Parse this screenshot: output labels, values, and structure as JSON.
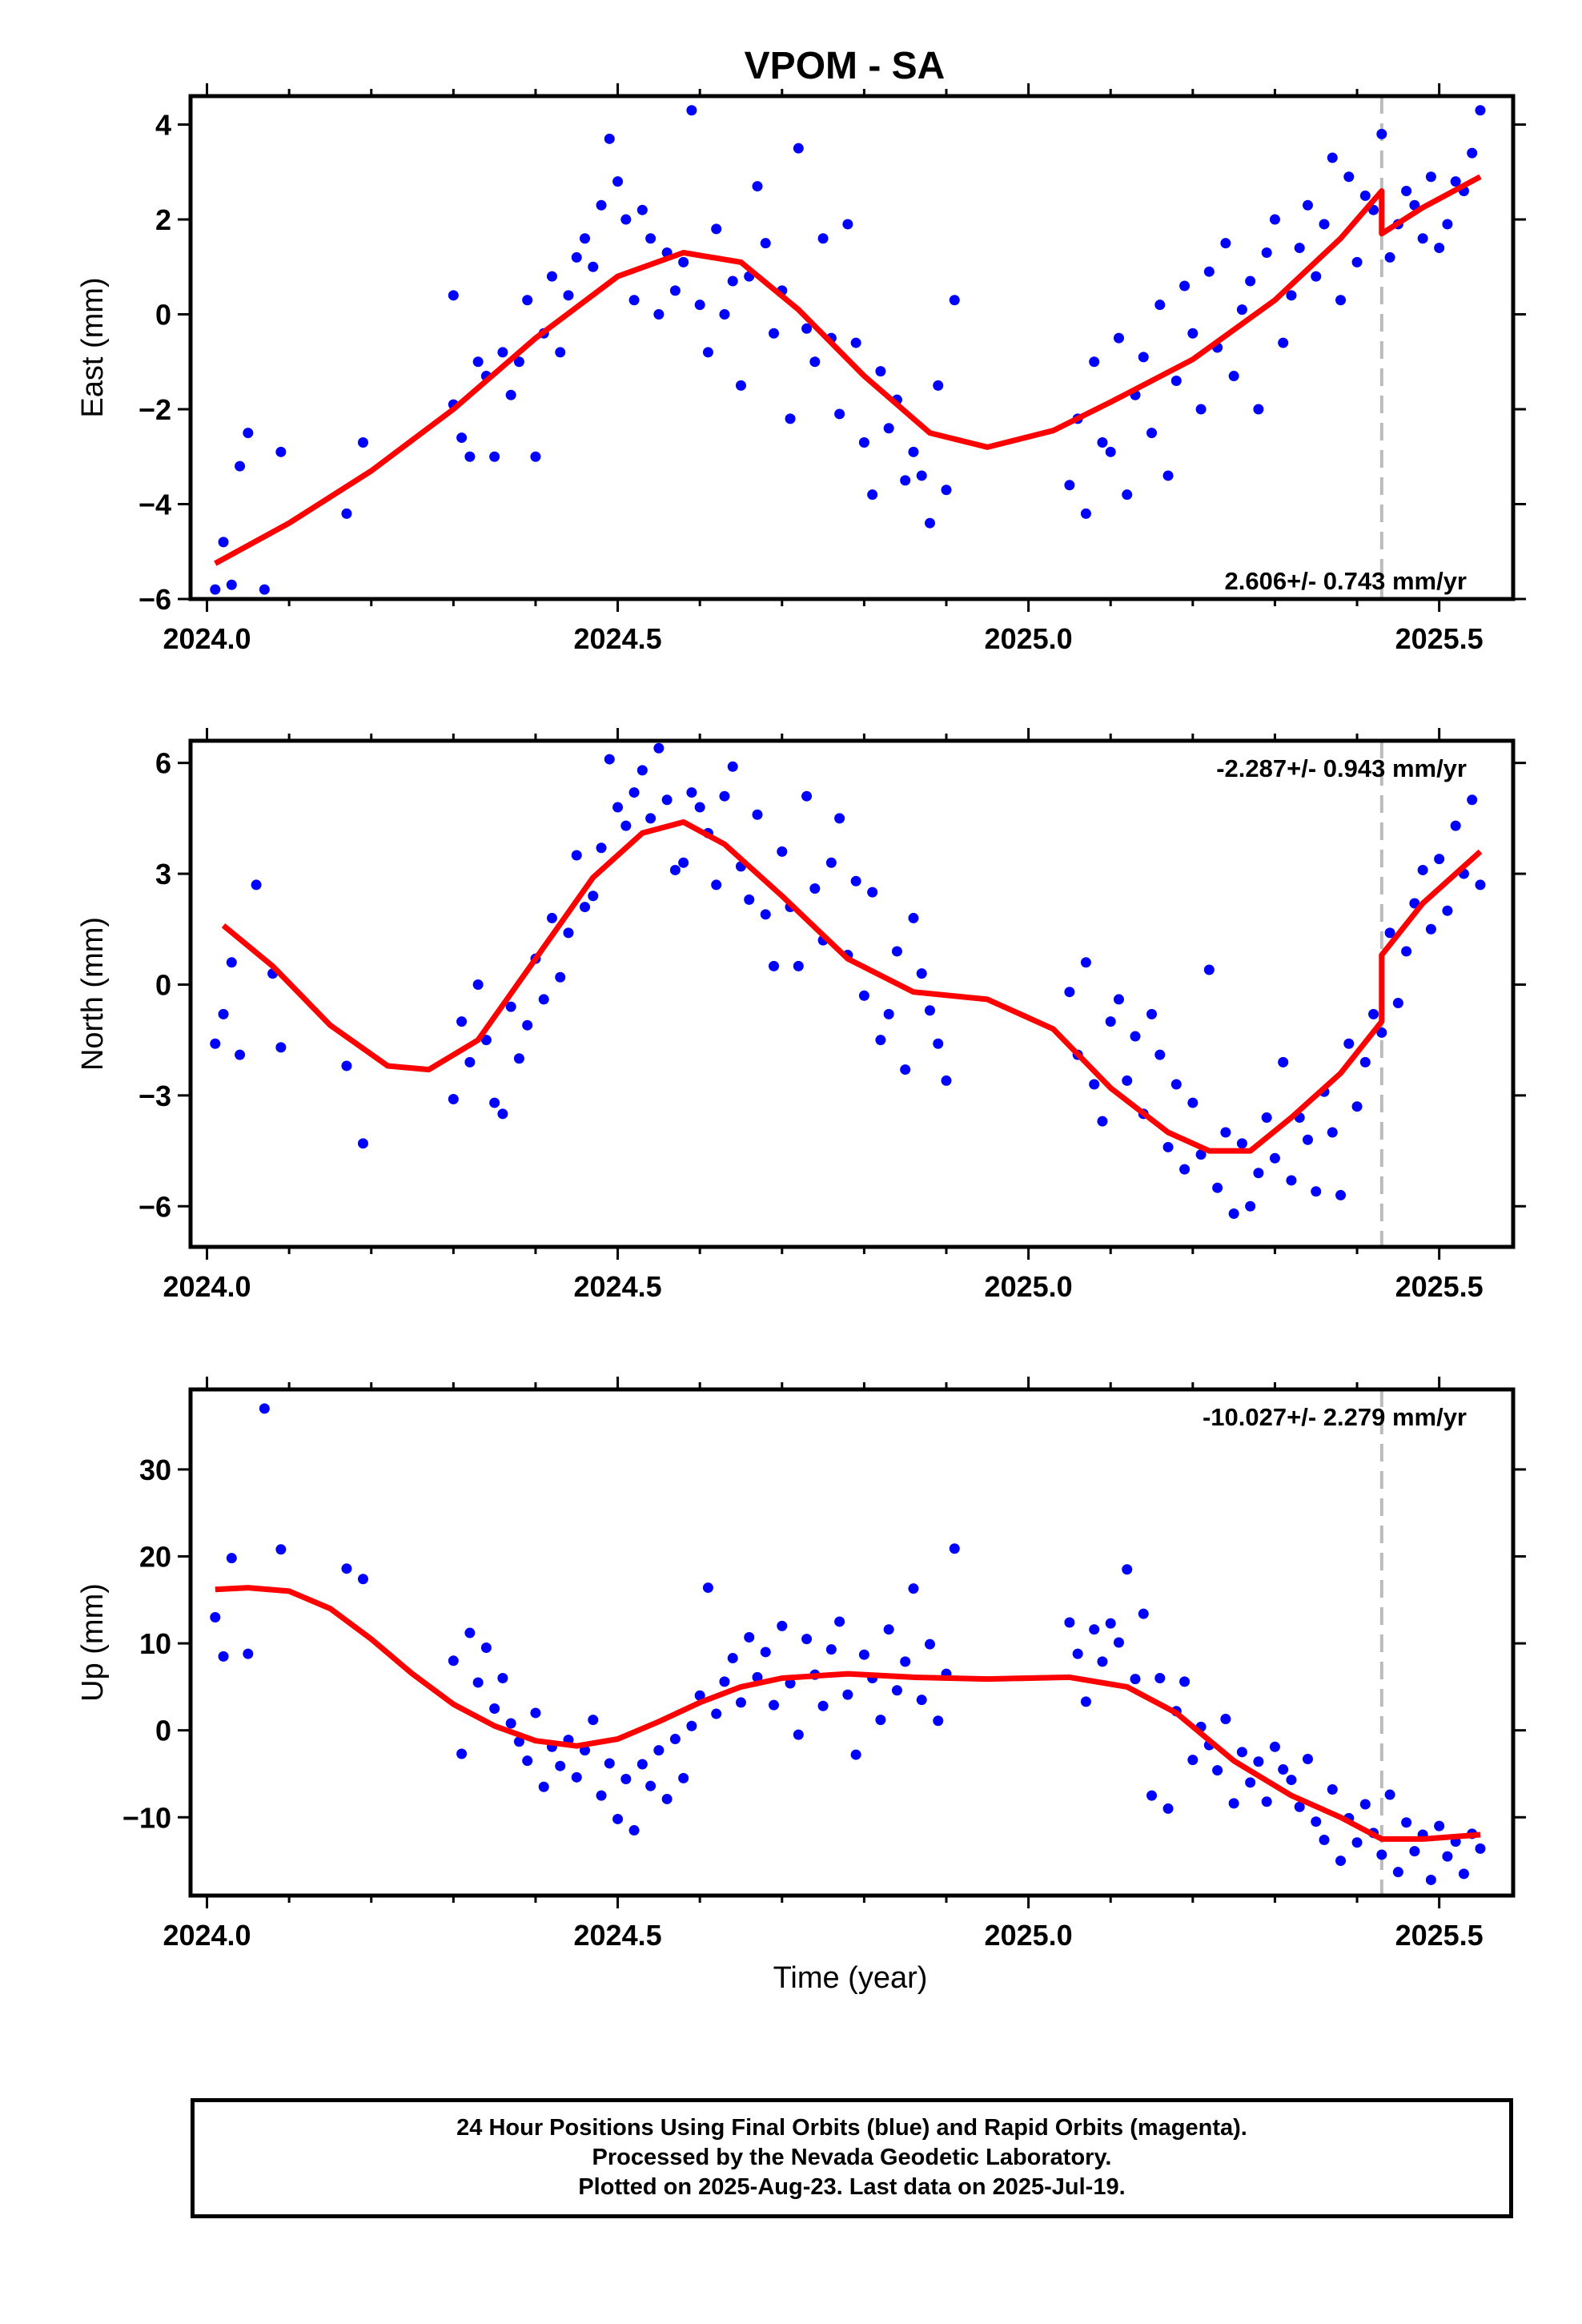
{
  "title": "VPOM - SA",
  "xlabel": "Time (year)",
  "footer": {
    "line1": "24 Hour Positions Using Final Orbits (blue) and Rapid Orbits (magenta).",
    "line2": "Processed by the Nevada Geodetic Laboratory.",
    "line3": "Plotted on 2025-Aug-23. Last data on 2025-Jul-19."
  },
  "colors": {
    "points": "#0000ff",
    "fit": "#ff0000",
    "event_line": "#bbbbbb",
    "frame": "#000000"
  },
  "chart_data": [
    {
      "type": "scatter",
      "ylabel": "East (mm)",
      "rate_label": "2.606+/- 0.743 mm/yr",
      "rate_position": "bottom-right",
      "xlim": [
        2023.98,
        2025.59
      ],
      "ylim": [
        -6,
        4.6
      ],
      "xticks": [
        2024.0,
        2024.5,
        2025.0,
        2025.5
      ],
      "xtick_labels": [
        "2024.0",
        "2024.5",
        "2025.0",
        "2025.5"
      ],
      "yticks": [
        -6,
        -4,
        -2,
        0,
        2,
        4
      ],
      "ytick_labels": [
        "−6",
        "−4",
        "−2",
        "0",
        "2",
        "4"
      ],
      "event_line_x": 2025.43,
      "fit": {
        "x": [
          2024.01,
          2024.1,
          2024.2,
          2024.3,
          2024.4,
          2024.5,
          2024.58,
          2024.65,
          2024.72,
          2024.8,
          2024.88,
          2024.95,
          2025.03,
          2025.1,
          2025.2,
          2025.3,
          2025.38,
          2025.43,
          2025.43,
          2025.48,
          2025.55
        ],
        "y": [
          -5.25,
          -4.4,
          -3.3,
          -2.0,
          -0.5,
          0.8,
          1.3,
          1.1,
          0.1,
          -1.3,
          -2.5,
          -2.8,
          -2.45,
          -1.85,
          -0.95,
          0.3,
          1.6,
          2.6,
          1.7,
          2.25,
          2.9
        ]
      },
      "points": {
        "x": [
          2024.01,
          2024.02,
          2024.03,
          2024.04,
          2024.05,
          2024.07,
          2024.09,
          2024.17,
          2024.19,
          2024.3,
          2024.3,
          2024.31,
          2024.32,
          2024.33,
          2024.34,
          2024.35,
          2024.36,
          2024.37,
          2024.38,
          2024.39,
          2024.4,
          2024.41,
          2024.42,
          2024.43,
          2024.44,
          2024.45,
          2024.46,
          2024.47,
          2024.48,
          2024.49,
          2024.5,
          2024.51,
          2024.52,
          2024.53,
          2024.54,
          2024.55,
          2024.56,
          2024.57,
          2024.58,
          2024.59,
          2024.6,
          2024.61,
          2024.62,
          2024.63,
          2024.64,
          2024.65,
          2024.66,
          2024.67,
          2024.68,
          2024.69,
          2024.7,
          2024.71,
          2024.72,
          2024.73,
          2024.74,
          2024.75,
          2024.76,
          2024.77,
          2024.78,
          2024.79,
          2024.8,
          2024.81,
          2024.82,
          2024.83,
          2024.84,
          2024.85,
          2024.86,
          2024.87,
          2024.88,
          2024.89,
          2024.9,
          2024.91,
          2025.05,
          2025.06,
          2025.07,
          2025.08,
          2025.09,
          2025.1,
          2025.11,
          2025.12,
          2025.13,
          2025.14,
          2025.15,
          2025.16,
          2025.17,
          2025.18,
          2025.19,
          2025.2,
          2025.21,
          2025.22,
          2025.23,
          2025.24,
          2025.25,
          2025.26,
          2025.27,
          2025.28,
          2025.29,
          2025.3,
          2025.31,
          2025.32,
          2025.33,
          2025.34,
          2025.35,
          2025.36,
          2025.37,
          2025.38,
          2025.39,
          2025.4,
          2025.41,
          2025.42,
          2025.43,
          2025.44,
          2025.45,
          2025.46,
          2025.47,
          2025.48,
          2025.49,
          2025.5,
          2025.51,
          2025.52,
          2025.53,
          2025.54,
          2025.55
        ],
        "y": [
          -5.8,
          -4.8,
          -5.7,
          -3.2,
          -2.5,
          -5.8,
          -2.9,
          -4.2,
          -2.7,
          0.4,
          -1.9,
          -2.6,
          -3.0,
          -1.0,
          -1.3,
          -3.0,
          -0.8,
          -1.7,
          -1.0,
          0.3,
          -3.0,
          -0.4,
          0.8,
          -0.8,
          0.4,
          1.2,
          1.6,
          1.0,
          2.3,
          3.7,
          2.8,
          2.0,
          0.3,
          2.2,
          1.6,
          0.0,
          1.3,
          0.5,
          1.1,
          4.3,
          0.2,
          -0.8,
          1.8,
          0.0,
          0.7,
          -1.5,
          0.8,
          2.7,
          1.5,
          -0.4,
          0.5,
          -2.2,
          3.5,
          -0.3,
          -1.0,
          1.6,
          -0.5,
          -2.1,
          1.9,
          -0.6,
          -2.7,
          -3.8,
          -1.2,
          -2.4,
          -1.8,
          -3.5,
          -2.9,
          -3.4,
          -4.4,
          -1.5,
          -3.7,
          0.3,
          -3.6,
          -2.2,
          -4.2,
          -1.0,
          -2.7,
          -2.9,
          -0.5,
          -3.8,
          -1.7,
          -0.9,
          -2.5,
          0.2,
          -3.4,
          -1.4,
          0.6,
          -0.4,
          -2.0,
          0.9,
          -0.7,
          1.5,
          -1.3,
          0.1,
          0.7,
          -2.0,
          1.3,
          2.0,
          -0.6,
          0.4,
          1.4,
          2.3,
          0.8,
          1.9,
          3.3,
          0.3,
          2.9,
          1.1,
          2.5,
          2.2,
          3.8,
          1.2,
          1.9,
          2.6,
          2.3,
          1.6,
          2.9,
          1.4,
          1.9,
          2.8,
          2.6,
          3.4,
          4.3
        ]
      }
    },
    {
      "type": "scatter",
      "ylabel": "North (mm)",
      "rate_label": "-2.287+/- 0.943 mm/yr",
      "rate_position": "top-right",
      "xlim": [
        2023.98,
        2025.59
      ],
      "ylim": [
        -7.1,
        6.6
      ],
      "xticks": [
        2024.0,
        2024.5,
        2025.0,
        2025.5
      ],
      "xtick_labels": [
        "2024.0",
        "2024.5",
        "2025.0",
        "2025.5"
      ],
      "yticks": [
        -6,
        -3,
        0,
        3,
        6
      ],
      "ytick_labels": [
        "−6",
        "−3",
        "0",
        "3",
        "6"
      ],
      "event_line_x": 2025.43,
      "fit": {
        "x": [
          2024.02,
          2024.08,
          2024.15,
          2024.22,
          2024.27,
          2024.33,
          2024.4,
          2024.47,
          2024.53,
          2024.58,
          2024.63,
          2024.7,
          2024.78,
          2024.86,
          2024.95,
          2025.03,
          2025.1,
          2025.17,
          2025.22,
          2025.27,
          2025.32,
          2025.38,
          2025.43,
          2025.43,
          2025.48,
          2025.55
        ],
        "y": [
          1.6,
          0.5,
          -1.1,
          -2.2,
          -2.3,
          -1.5,
          0.7,
          2.9,
          4.1,
          4.4,
          3.8,
          2.4,
          0.7,
          -0.2,
          -0.4,
          -1.2,
          -2.8,
          -4.0,
          -4.5,
          -4.5,
          -3.6,
          -2.4,
          -1.0,
          0.8,
          2.2,
          3.6
        ]
      },
      "points": {
        "x": [
          2024.01,
          2024.02,
          2024.03,
          2024.04,
          2024.06,
          2024.08,
          2024.09,
          2024.17,
          2024.19,
          2024.3,
          2024.31,
          2024.32,
          2024.33,
          2024.34,
          2024.35,
          2024.36,
          2024.37,
          2024.38,
          2024.39,
          2024.4,
          2024.41,
          2024.42,
          2024.43,
          2024.44,
          2024.45,
          2024.46,
          2024.47,
          2024.48,
          2024.49,
          2024.5,
          2024.51,
          2024.52,
          2024.53,
          2024.54,
          2024.55,
          2024.56,
          2024.57,
          2024.58,
          2024.59,
          2024.6,
          2024.61,
          2024.62,
          2024.63,
          2024.64,
          2024.65,
          2024.66,
          2024.67,
          2024.68,
          2024.69,
          2024.7,
          2024.71,
          2024.72,
          2024.73,
          2024.74,
          2024.75,
          2024.76,
          2024.77,
          2024.78,
          2024.79,
          2024.8,
          2024.81,
          2024.82,
          2024.83,
          2024.84,
          2024.85,
          2024.86,
          2024.87,
          2024.88,
          2024.89,
          2024.9,
          2025.05,
          2025.06,
          2025.07,
          2025.08,
          2025.09,
          2025.1,
          2025.11,
          2025.12,
          2025.13,
          2025.14,
          2025.15,
          2025.16,
          2025.17,
          2025.18,
          2025.19,
          2025.2,
          2025.21,
          2025.22,
          2025.23,
          2025.24,
          2025.25,
          2025.26,
          2025.27,
          2025.28,
          2025.29,
          2025.3,
          2025.31,
          2025.32,
          2025.33,
          2025.34,
          2025.35,
          2025.36,
          2025.37,
          2025.38,
          2025.39,
          2025.4,
          2025.41,
          2025.42,
          2025.43,
          2025.44,
          2025.45,
          2025.46,
          2025.47,
          2025.48,
          2025.49,
          2025.5,
          2025.51,
          2025.52,
          2025.53,
          2025.54,
          2025.55
        ],
        "y": [
          -1.6,
          -0.8,
          0.6,
          -1.9,
          2.7,
          0.3,
          -1.7,
          -2.2,
          -4.3,
          -3.1,
          -1.0,
          -2.1,
          0.0,
          -1.5,
          -3.2,
          -3.5,
          -0.6,
          -2.0,
          -1.1,
          0.7,
          -0.4,
          1.8,
          0.2,
          1.4,
          3.5,
          2.1,
          2.4,
          3.7,
          6.1,
          4.8,
          4.3,
          5.2,
          5.8,
          4.5,
          6.4,
          5.0,
          3.1,
          3.3,
          5.2,
          4.8,
          4.1,
          2.7,
          5.1,
          5.9,
          3.2,
          2.3,
          4.6,
          1.9,
          0.5,
          3.6,
          2.1,
          0.5,
          5.1,
          2.6,
          1.2,
          3.3,
          4.5,
          0.8,
          2.8,
          -0.3,
          2.5,
          -1.5,
          -0.8,
          0.9,
          -2.3,
          1.8,
          0.3,
          -0.7,
          -1.6,
          -2.6,
          -0.2,
          -1.9,
          0.6,
          -2.7,
          -3.7,
          -1.0,
          -0.4,
          -2.6,
          -1.4,
          -3.5,
          -0.8,
          -1.9,
          -4.4,
          -2.7,
          -5.0,
          -3.2,
          -4.6,
          0.4,
          -5.5,
          -4.0,
          -6.2,
          -4.3,
          -6.0,
          -5.1,
          -3.6,
          -4.7,
          -2.1,
          -5.3,
          -3.6,
          -4.2,
          -5.6,
          -2.9,
          -4.0,
          -5.7,
          -1.6,
          -3.3,
          -2.1,
          -0.8,
          -1.3,
          1.4,
          -0.5,
          0.9,
          2.2,
          3.1,
          1.5,
          3.4,
          2.0,
          4.3,
          3.0,
          5.0,
          2.7
        ]
      }
    },
    {
      "type": "scatter",
      "ylabel": "Up (mm)",
      "rate_label": "-10.027+/- 2.279 mm/yr",
      "rate_position": "top-right",
      "xlim": [
        2023.98,
        2025.59
      ],
      "ylim": [
        -19,
        39.2
      ],
      "xticks": [
        2024.0,
        2024.5,
        2025.0,
        2025.5
      ],
      "xtick_labels": [
        "2024.0",
        "2024.5",
        "2025.0",
        "2025.5"
      ],
      "yticks": [
        -10,
        0,
        10,
        20,
        30
      ],
      "ytick_labels": [
        "−10",
        "0",
        "10",
        "20",
        "30"
      ],
      "event_line_x": 2025.43,
      "fit": {
        "x": [
          2024.01,
          2024.05,
          2024.1,
          2024.15,
          2024.2,
          2024.25,
          2024.3,
          2024.35,
          2024.4,
          2024.45,
          2024.5,
          2024.55,
          2024.6,
          2024.65,
          2024.7,
          2024.78,
          2024.86,
          2024.95,
          2025.05,
          2025.12,
          2025.18,
          2025.25,
          2025.32,
          2025.38,
          2025.43,
          2025.48,
          2025.55
        ],
        "y": [
          16.2,
          16.4,
          16.0,
          14.0,
          10.5,
          6.5,
          3.0,
          0.5,
          -1.2,
          -1.8,
          -1.0,
          1.0,
          3.2,
          5.0,
          6.0,
          6.5,
          6.1,
          5.9,
          6.1,
          5.0,
          2.0,
          -3.5,
          -7.5,
          -10.0,
          -12.5,
          -12.5,
          -12.0
        ]
      },
      "points": {
        "x": [
          2024.01,
          2024.02,
          2024.03,
          2024.05,
          2024.07,
          2024.09,
          2024.17,
          2024.19,
          2024.3,
          2024.31,
          2024.32,
          2024.33,
          2024.34,
          2024.35,
          2024.36,
          2024.37,
          2024.38,
          2024.39,
          2024.4,
          2024.41,
          2024.42,
          2024.43,
          2024.44,
          2024.45,
          2024.46,
          2024.47,
          2024.48,
          2024.49,
          2024.5,
          2024.51,
          2024.52,
          2024.53,
          2024.54,
          2024.55,
          2024.56,
          2024.57,
          2024.58,
          2024.59,
          2024.6,
          2024.61,
          2024.62,
          2024.63,
          2024.64,
          2024.65,
          2024.66,
          2024.67,
          2024.68,
          2024.69,
          2024.7,
          2024.71,
          2024.72,
          2024.73,
          2024.74,
          2024.75,
          2024.76,
          2024.77,
          2024.78,
          2024.79,
          2024.8,
          2024.81,
          2024.82,
          2024.83,
          2024.84,
          2024.85,
          2024.86,
          2024.87,
          2024.88,
          2024.89,
          2024.9,
          2024.91,
          2025.05,
          2025.06,
          2025.07,
          2025.08,
          2025.09,
          2025.1,
          2025.11,
          2025.12,
          2025.13,
          2025.14,
          2025.15,
          2025.16,
          2025.17,
          2025.18,
          2025.19,
          2025.2,
          2025.21,
          2025.22,
          2025.23,
          2025.24,
          2025.25,
          2025.26,
          2025.27,
          2025.28,
          2025.29,
          2025.3,
          2025.31,
          2025.32,
          2025.33,
          2025.34,
          2025.35,
          2025.36,
          2025.37,
          2025.38,
          2025.39,
          2025.4,
          2025.41,
          2025.42,
          2025.43,
          2025.44,
          2025.45,
          2025.46,
          2025.47,
          2025.48,
          2025.49,
          2025.5,
          2025.51,
          2025.52,
          2025.53,
          2025.54,
          2025.55
        ],
        "y": [
          13.0,
          8.5,
          19.8,
          8.8,
          37.0,
          20.8,
          18.6,
          17.4,
          8.0,
          -2.7,
          11.2,
          5.5,
          9.5,
          2.5,
          6.0,
          0.8,
          -1.3,
          -3.5,
          2.0,
          -6.5,
          -1.9,
          -4.1,
          -1.1,
          -5.4,
          -2.3,
          1.2,
          -7.5,
          -3.8,
          -10.2,
          -5.6,
          -11.5,
          -3.9,
          -6.4,
          -2.3,
          -7.9,
          -1.0,
          -5.5,
          0.5,
          4.0,
          16.4,
          1.9,
          5.6,
          8.3,
          3.2,
          10.7,
          6.1,
          9.0,
          2.9,
          12.0,
          5.4,
          -0.5,
          10.5,
          6.4,
          2.8,
          9.3,
          12.5,
          4.1,
          -2.8,
          8.7,
          6.0,
          1.2,
          11.6,
          4.6,
          7.9,
          16.3,
          3.5,
          9.9,
          1.1,
          6.5,
          20.9,
          12.4,
          8.8,
          3.3,
          11.6,
          7.9,
          12.3,
          10.1,
          18.5,
          5.9,
          13.4,
          -7.5,
          6.0,
          -9.0,
          2.2,
          5.6,
          -3.4,
          0.4,
          -1.7,
          -4.6,
          1.3,
          -8.4,
          -2.5,
          -6.0,
          -3.6,
          -8.2,
          -1.9,
          -4.5,
          -5.7,
          -8.8,
          -3.3,
          -10.5,
          -12.6,
          -6.8,
          -15.0,
          -10.1,
          -12.9,
          -8.5,
          -11.8,
          -14.3,
          -7.4,
          -16.3,
          -10.6,
          -13.9,
          -12.0,
          -17.2,
          -11.0,
          -14.5,
          -12.8,
          -16.5,
          -11.9,
          -13.6
        ]
      }
    }
  ]
}
